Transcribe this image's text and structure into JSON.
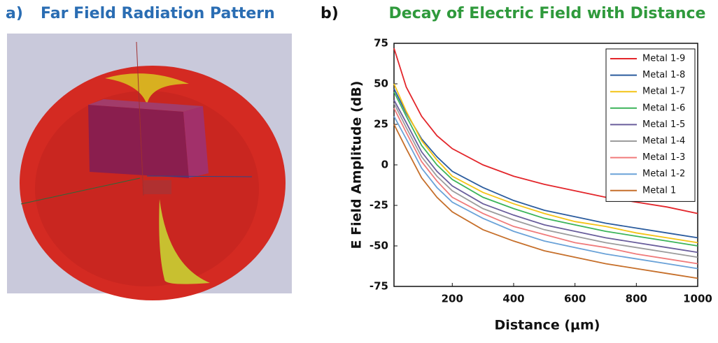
{
  "panel_a": {
    "label": "a)",
    "title": "Far Field Radiation Pattern"
  },
  "panel_b_label": "b)",
  "chart_data": {
    "type": "line",
    "title": "Decay of Electric Field with Distance",
    "x_label": "Distance (μm)",
    "y_label": "E Field Amplitude (dB)",
    "x": [
      10,
      50,
      100,
      150,
      200,
      300,
      400,
      500,
      600,
      700,
      800,
      900,
      1000
    ],
    "xlim": [
      10,
      1000
    ],
    "xticks": [
      200,
      400,
      600,
      800,
      1000
    ],
    "ylim": [
      -75,
      75
    ],
    "yticks": [
      -75,
      -50,
      -25,
      0,
      25,
      50,
      75
    ],
    "legend": "upper right",
    "series": [
      {
        "name": "Metal 1-9",
        "color": "#e3262b",
        "values": [
          72,
          48,
          30,
          18,
          10,
          0,
          -7,
          -12,
          -16,
          -20,
          -23,
          -26,
          -30
        ]
      },
      {
        "name": "Metal 1-8",
        "color": "#2b5c9e",
        "values": [
          47,
          32,
          16,
          5,
          -4,
          -14,
          -22,
          -28,
          -32,
          -36,
          -39,
          -42,
          -45
        ]
      },
      {
        "name": "Metal 1-7",
        "color": "#f4c316",
        "values": [
          50,
          33,
          15,
          3,
          -7,
          -17,
          -24,
          -30,
          -35,
          -38,
          -42,
          -45,
          -48
        ]
      },
      {
        "name": "Metal 1-6",
        "color": "#3cb45a",
        "values": [
          45,
          30,
          12,
          0,
          -9,
          -20,
          -27,
          -33,
          -37,
          -41,
          -44,
          -47,
          -50
        ]
      },
      {
        "name": "Metal 1-5",
        "color": "#6a5e9c",
        "values": [
          40,
          26,
          8,
          -4,
          -13,
          -24,
          -31,
          -37,
          -41,
          -45,
          -48,
          -51,
          -54
        ]
      },
      {
        "name": "Metal 1-4",
        "color": "#9c9c9c",
        "values": [
          38,
          23,
          5,
          -7,
          -16,
          -27,
          -34,
          -40,
          -44,
          -48,
          -51,
          -54,
          -57
        ]
      },
      {
        "name": "Metal 1-3",
        "color": "#f07b7b",
        "values": [
          35,
          20,
          2,
          -10,
          -20,
          -30,
          -38,
          -43,
          -48,
          -51,
          -55,
          -58,
          -61
        ]
      },
      {
        "name": "Metal 1-2",
        "color": "#6aa2d8",
        "values": [
          30,
          16,
          -2,
          -14,
          -23,
          -33,
          -41,
          -47,
          -51,
          -55,
          -58,
          -61,
          -64
        ]
      },
      {
        "name": "Metal 1",
        "color": "#c66f2a",
        "values": [
          25,
          10,
          -8,
          -20,
          -29,
          -40,
          -47,
          -53,
          -57,
          -61,
          -64,
          -67,
          -70
        ]
      }
    ]
  }
}
